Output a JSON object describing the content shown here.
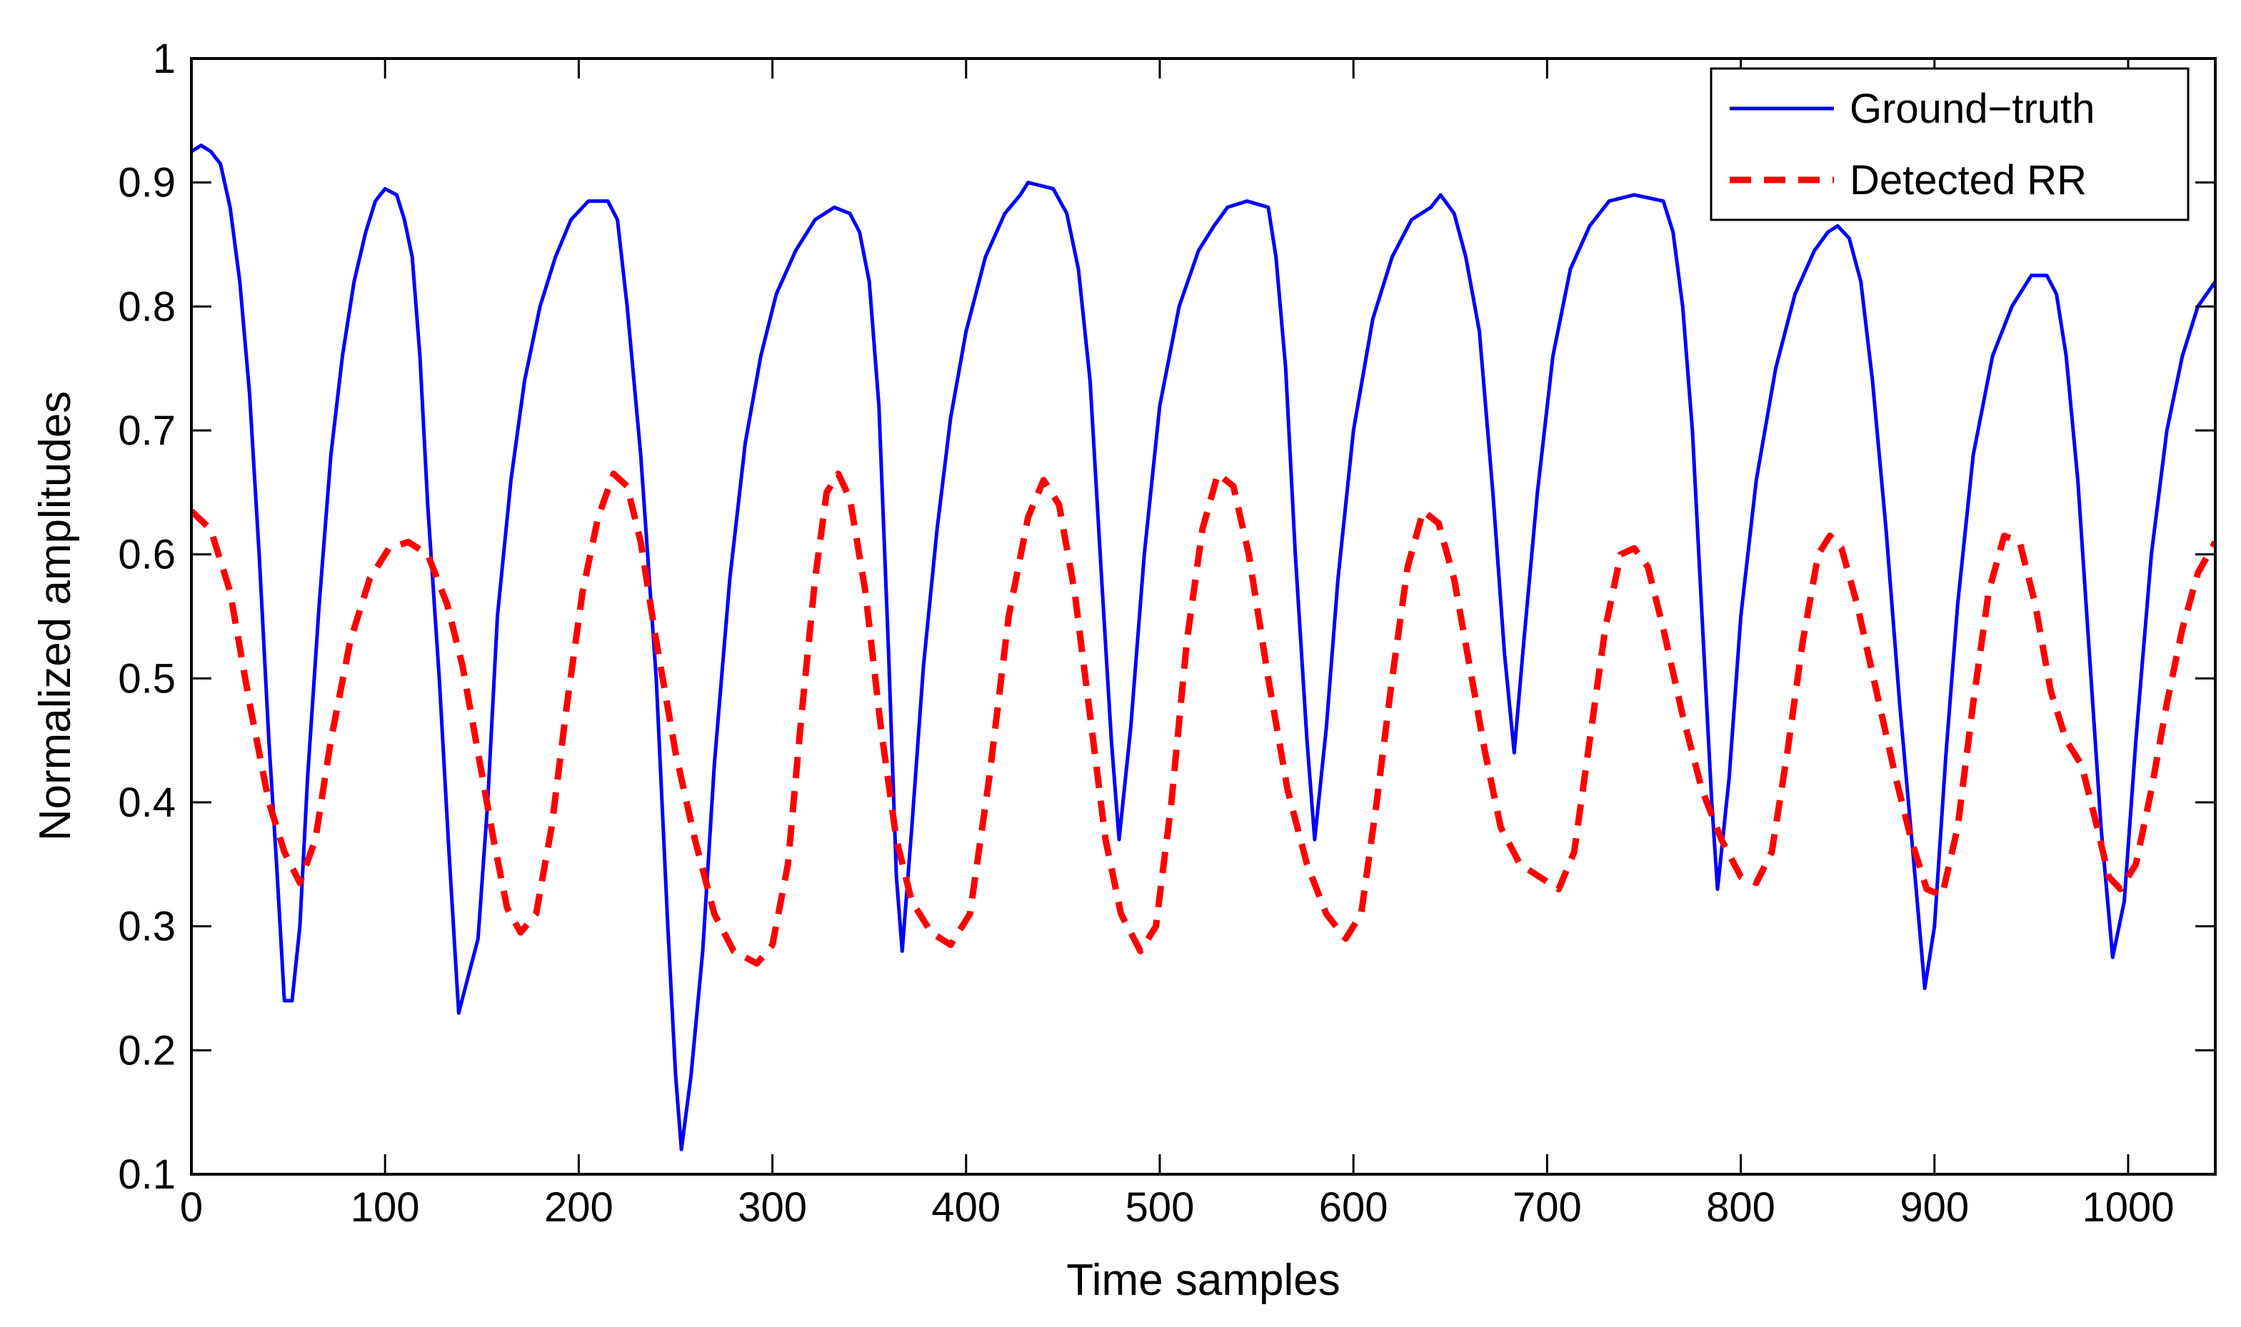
{
  "chart_data": {
    "type": "line",
    "title": "",
    "xlabel": "Time samples",
    "ylabel": "Normalized amplitudes",
    "xlim": [
      0,
      1045
    ],
    "ylim": [
      0.1,
      1
    ],
    "xticks": [
      0,
      100,
      200,
      300,
      400,
      500,
      600,
      700,
      800,
      900,
      1000
    ],
    "yticks": [
      0.1,
      0.2,
      0.3,
      0.4,
      0.5,
      0.6,
      0.7,
      0.8,
      0.9,
      1
    ],
    "xtick_labels": [
      "0",
      "100",
      "200",
      "300",
      "400",
      "500",
      "600",
      "700",
      "800",
      "900",
      "1000"
    ],
    "ytick_labels": [
      "0.1",
      "0.2",
      "0.3",
      "0.4",
      "0.5",
      "0.6",
      "0.7",
      "0.8",
      "0.9",
      "1"
    ],
    "grid": false,
    "legend_position": "top-right",
    "series": [
      {
        "name": "Ground−truth",
        "color": "#0000ff",
        "style": "solid",
        "points": [
          [
            0,
            0.925
          ],
          [
            5,
            0.93
          ],
          [
            10,
            0.925
          ],
          [
            15,
            0.915
          ],
          [
            20,
            0.88
          ],
          [
            25,
            0.82
          ],
          [
            30,
            0.73
          ],
          [
            35,
            0.6
          ],
          [
            40,
            0.45
          ],
          [
            44,
            0.35
          ],
          [
            48,
            0.24
          ],
          [
            52,
            0.24
          ],
          [
            56,
            0.3
          ],
          [
            60,
            0.42
          ],
          [
            66,
            0.56
          ],
          [
            72,
            0.68
          ],
          [
            78,
            0.76
          ],
          [
            84,
            0.82
          ],
          [
            90,
            0.86
          ],
          [
            95,
            0.885
          ],
          [
            100,
            0.895
          ],
          [
            106,
            0.89
          ],
          [
            110,
            0.87
          ],
          [
            114,
            0.84
          ],
          [
            118,
            0.76
          ],
          [
            122,
            0.64
          ],
          [
            128,
            0.5
          ],
          [
            133,
            0.36
          ],
          [
            138,
            0.23
          ],
          [
            143,
            0.26
          ],
          [
            148,
            0.29
          ],
          [
            153,
            0.4
          ],
          [
            158,
            0.55
          ],
          [
            165,
            0.66
          ],
          [
            172,
            0.74
          ],
          [
            180,
            0.8
          ],
          [
            188,
            0.84
          ],
          [
            196,
            0.87
          ],
          [
            205,
            0.885
          ],
          [
            215,
            0.885
          ],
          [
            220,
            0.87
          ],
          [
            225,
            0.8
          ],
          [
            232,
            0.68
          ],
          [
            240,
            0.5
          ],
          [
            246,
            0.3
          ],
          [
            250,
            0.18
          ],
          [
            253,
            0.12
          ],
          [
            258,
            0.18
          ],
          [
            264,
            0.28
          ],
          [
            270,
            0.43
          ],
          [
            278,
            0.58
          ],
          [
            286,
            0.69
          ],
          [
            294,
            0.76
          ],
          [
            302,
            0.81
          ],
          [
            312,
            0.845
          ],
          [
            322,
            0.87
          ],
          [
            332,
            0.88
          ],
          [
            340,
            0.875
          ],
          [
            345,
            0.86
          ],
          [
            350,
            0.82
          ],
          [
            355,
            0.72
          ],
          [
            360,
            0.52
          ],
          [
            364,
            0.34
          ],
          [
            367,
            0.28
          ],
          [
            372,
            0.38
          ],
          [
            378,
            0.51
          ],
          [
            385,
            0.62
          ],
          [
            392,
            0.71
          ],
          [
            400,
            0.78
          ],
          [
            410,
            0.84
          ],
          [
            420,
            0.875
          ],
          [
            428,
            0.89
          ],
          [
            432,
            0.9
          ],
          [
            445,
            0.895
          ],
          [
            452,
            0.875
          ],
          [
            458,
            0.83
          ],
          [
            464,
            0.74
          ],
          [
            470,
            0.58
          ],
          [
            475,
            0.45
          ],
          [
            479,
            0.37
          ],
          [
            485,
            0.46
          ],
          [
            492,
            0.6
          ],
          [
            500,
            0.72
          ],
          [
            510,
            0.8
          ],
          [
            520,
            0.845
          ],
          [
            528,
            0.865
          ],
          [
            535,
            0.88
          ],
          [
            545,
            0.885
          ],
          [
            556,
            0.88
          ],
          [
            560,
            0.84
          ],
          [
            565,
            0.75
          ],
          [
            570,
            0.6
          ],
          [
            576,
            0.45
          ],
          [
            580,
            0.37
          ],
          [
            586,
            0.46
          ],
          [
            592,
            0.58
          ],
          [
            600,
            0.7
          ],
          [
            610,
            0.79
          ],
          [
            620,
            0.84
          ],
          [
            630,
            0.87
          ],
          [
            640,
            0.88
          ],
          [
            645,
            0.89
          ],
          [
            652,
            0.875
          ],
          [
            658,
            0.84
          ],
          [
            665,
            0.78
          ],
          [
            672,
            0.65
          ],
          [
            678,
            0.52
          ],
          [
            683,
            0.44
          ],
          [
            688,
            0.53
          ],
          [
            695,
            0.65
          ],
          [
            703,
            0.76
          ],
          [
            712,
            0.83
          ],
          [
            722,
            0.865
          ],
          [
            732,
            0.885
          ],
          [
            745,
            0.89
          ],
          [
            760,
            0.885
          ],
          [
            765,
            0.86
          ],
          [
            770,
            0.8
          ],
          [
            775,
            0.7
          ],
          [
            780,
            0.55
          ],
          [
            785,
            0.4
          ],
          [
            788,
            0.33
          ],
          [
            794,
            0.42
          ],
          [
            800,
            0.55
          ],
          [
            808,
            0.66
          ],
          [
            818,
            0.75
          ],
          [
            828,
            0.81
          ],
          [
            838,
            0.845
          ],
          [
            845,
            0.86
          ],
          [
            850,
            0.865
          ],
          [
            856,
            0.855
          ],
          [
            862,
            0.82
          ],
          [
            868,
            0.74
          ],
          [
            875,
            0.62
          ],
          [
            882,
            0.48
          ],
          [
            890,
            0.34
          ],
          [
            895,
            0.25
          ],
          [
            900,
            0.3
          ],
          [
            906,
            0.44
          ],
          [
            912,
            0.56
          ],
          [
            920,
            0.68
          ],
          [
            930,
            0.76
          ],
          [
            940,
            0.8
          ],
          [
            950,
            0.825
          ],
          [
            958,
            0.825
          ],
          [
            963,
            0.81
          ],
          [
            968,
            0.76
          ],
          [
            974,
            0.66
          ],
          [
            980,
            0.52
          ],
          [
            986,
            0.38
          ],
          [
            992,
            0.275
          ],
          [
            998,
            0.32
          ],
          [
            1004,
            0.45
          ],
          [
            1012,
            0.6
          ],
          [
            1020,
            0.7
          ],
          [
            1028,
            0.76
          ],
          [
            1036,
            0.8
          ],
          [
            1045,
            0.82
          ]
        ]
      },
      {
        "name": "Detected RR",
        "color": "#ff0000",
        "style": "dashed",
        "points": [
          [
            0,
            0.635
          ],
          [
            10,
            0.62
          ],
          [
            20,
            0.57
          ],
          [
            30,
            0.48
          ],
          [
            40,
            0.4
          ],
          [
            48,
            0.36
          ],
          [
            56,
            0.335
          ],
          [
            64,
            0.37
          ],
          [
            72,
            0.45
          ],
          [
            82,
            0.53
          ],
          [
            92,
            0.58
          ],
          [
            102,
            0.605
          ],
          [
            112,
            0.61
          ],
          [
            122,
            0.6
          ],
          [
            132,
            0.56
          ],
          [
            140,
            0.51
          ],
          [
            148,
            0.44
          ],
          [
            156,
            0.37
          ],
          [
            163,
            0.315
          ],
          [
            170,
            0.295
          ],
          [
            178,
            0.31
          ],
          [
            186,
            0.38
          ],
          [
            194,
            0.48
          ],
          [
            202,
            0.57
          ],
          [
            210,
            0.63
          ],
          [
            218,
            0.665
          ],
          [
            225,
            0.655
          ],
          [
            232,
            0.61
          ],
          [
            240,
            0.53
          ],
          [
            250,
            0.44
          ],
          [
            260,
            0.37
          ],
          [
            270,
            0.31
          ],
          [
            280,
            0.28
          ],
          [
            292,
            0.27
          ],
          [
            300,
            0.285
          ],
          [
            308,
            0.35
          ],
          [
            315,
            0.47
          ],
          [
            322,
            0.58
          ],
          [
            328,
            0.65
          ],
          [
            334,
            0.665
          ],
          [
            340,
            0.645
          ],
          [
            348,
            0.57
          ],
          [
            356,
            0.46
          ],
          [
            364,
            0.37
          ],
          [
            372,
            0.32
          ],
          [
            382,
            0.295
          ],
          [
            392,
            0.285
          ],
          [
            402,
            0.31
          ],
          [
            412,
            0.42
          ],
          [
            422,
            0.55
          ],
          [
            432,
            0.63
          ],
          [
            440,
            0.66
          ],
          [
            448,
            0.64
          ],
          [
            456,
            0.57
          ],
          [
            464,
            0.47
          ],
          [
            472,
            0.37
          ],
          [
            480,
            0.31
          ],
          [
            490,
            0.28
          ],
          [
            498,
            0.3
          ],
          [
            506,
            0.4
          ],
          [
            514,
            0.53
          ],
          [
            522,
            0.62
          ],
          [
            530,
            0.665
          ],
          [
            538,
            0.655
          ],
          [
            546,
            0.6
          ],
          [
            556,
            0.5
          ],
          [
            566,
            0.41
          ],
          [
            576,
            0.35
          ],
          [
            586,
            0.31
          ],
          [
            596,
            0.29
          ],
          [
            604,
            0.31
          ],
          [
            612,
            0.4
          ],
          [
            620,
            0.5
          ],
          [
            628,
            0.59
          ],
          [
            636,
            0.635
          ],
          [
            644,
            0.625
          ],
          [
            652,
            0.58
          ],
          [
            660,
            0.51
          ],
          [
            668,
            0.44
          ],
          [
            676,
            0.38
          ],
          [
            686,
            0.35
          ],
          [
            696,
            0.34
          ],
          [
            706,
            0.33
          ],
          [
            714,
            0.36
          ],
          [
            722,
            0.45
          ],
          [
            730,
            0.54
          ],
          [
            738,
            0.6
          ],
          [
            745,
            0.605
          ],
          [
            752,
            0.59
          ],
          [
            760,
            0.54
          ],
          [
            770,
            0.47
          ],
          [
            780,
            0.41
          ],
          [
            790,
            0.37
          ],
          [
            800,
            0.34
          ],
          [
            808,
            0.335
          ],
          [
            816,
            0.36
          ],
          [
            824,
            0.44
          ],
          [
            832,
            0.53
          ],
          [
            840,
            0.6
          ],
          [
            846,
            0.615
          ],
          [
            852,
            0.605
          ],
          [
            860,
            0.56
          ],
          [
            870,
            0.49
          ],
          [
            880,
            0.42
          ],
          [
            888,
            0.37
          ],
          [
            896,
            0.33
          ],
          [
            904,
            0.325
          ],
          [
            912,
            0.38
          ],
          [
            920,
            0.48
          ],
          [
            928,
            0.57
          ],
          [
            936,
            0.615
          ],
          [
            944,
            0.61
          ],
          [
            952,
            0.56
          ],
          [
            960,
            0.49
          ],
          [
            968,
            0.45
          ],
          [
            976,
            0.43
          ],
          [
            984,
            0.38
          ],
          [
            990,
            0.34
          ],
          [
            996,
            0.33
          ],
          [
            1004,
            0.35
          ],
          [
            1012,
            0.41
          ],
          [
            1020,
            0.48
          ],
          [
            1028,
            0.54
          ],
          [
            1036,
            0.585
          ],
          [
            1045,
            0.61
          ]
        ]
      }
    ]
  }
}
